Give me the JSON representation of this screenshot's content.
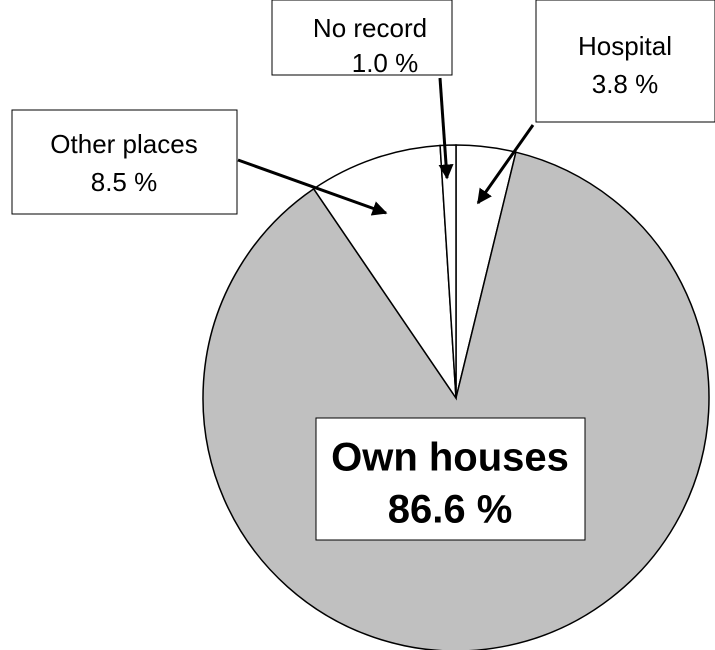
{
  "chart_data": {
    "type": "pie",
    "categories": [
      "Hospital",
      "Own houses",
      "Other places",
      "No record"
    ],
    "values": [
      3.8,
      86.6,
      8.5,
      1.0
    ],
    "value_labels": [
      "3.8 %",
      "86.6 %",
      "8.5 %",
      "1.0 %"
    ],
    "colors": [
      "#ffffff",
      "#c0c0c0",
      "#ffffff",
      "#ffffff"
    ]
  }
}
